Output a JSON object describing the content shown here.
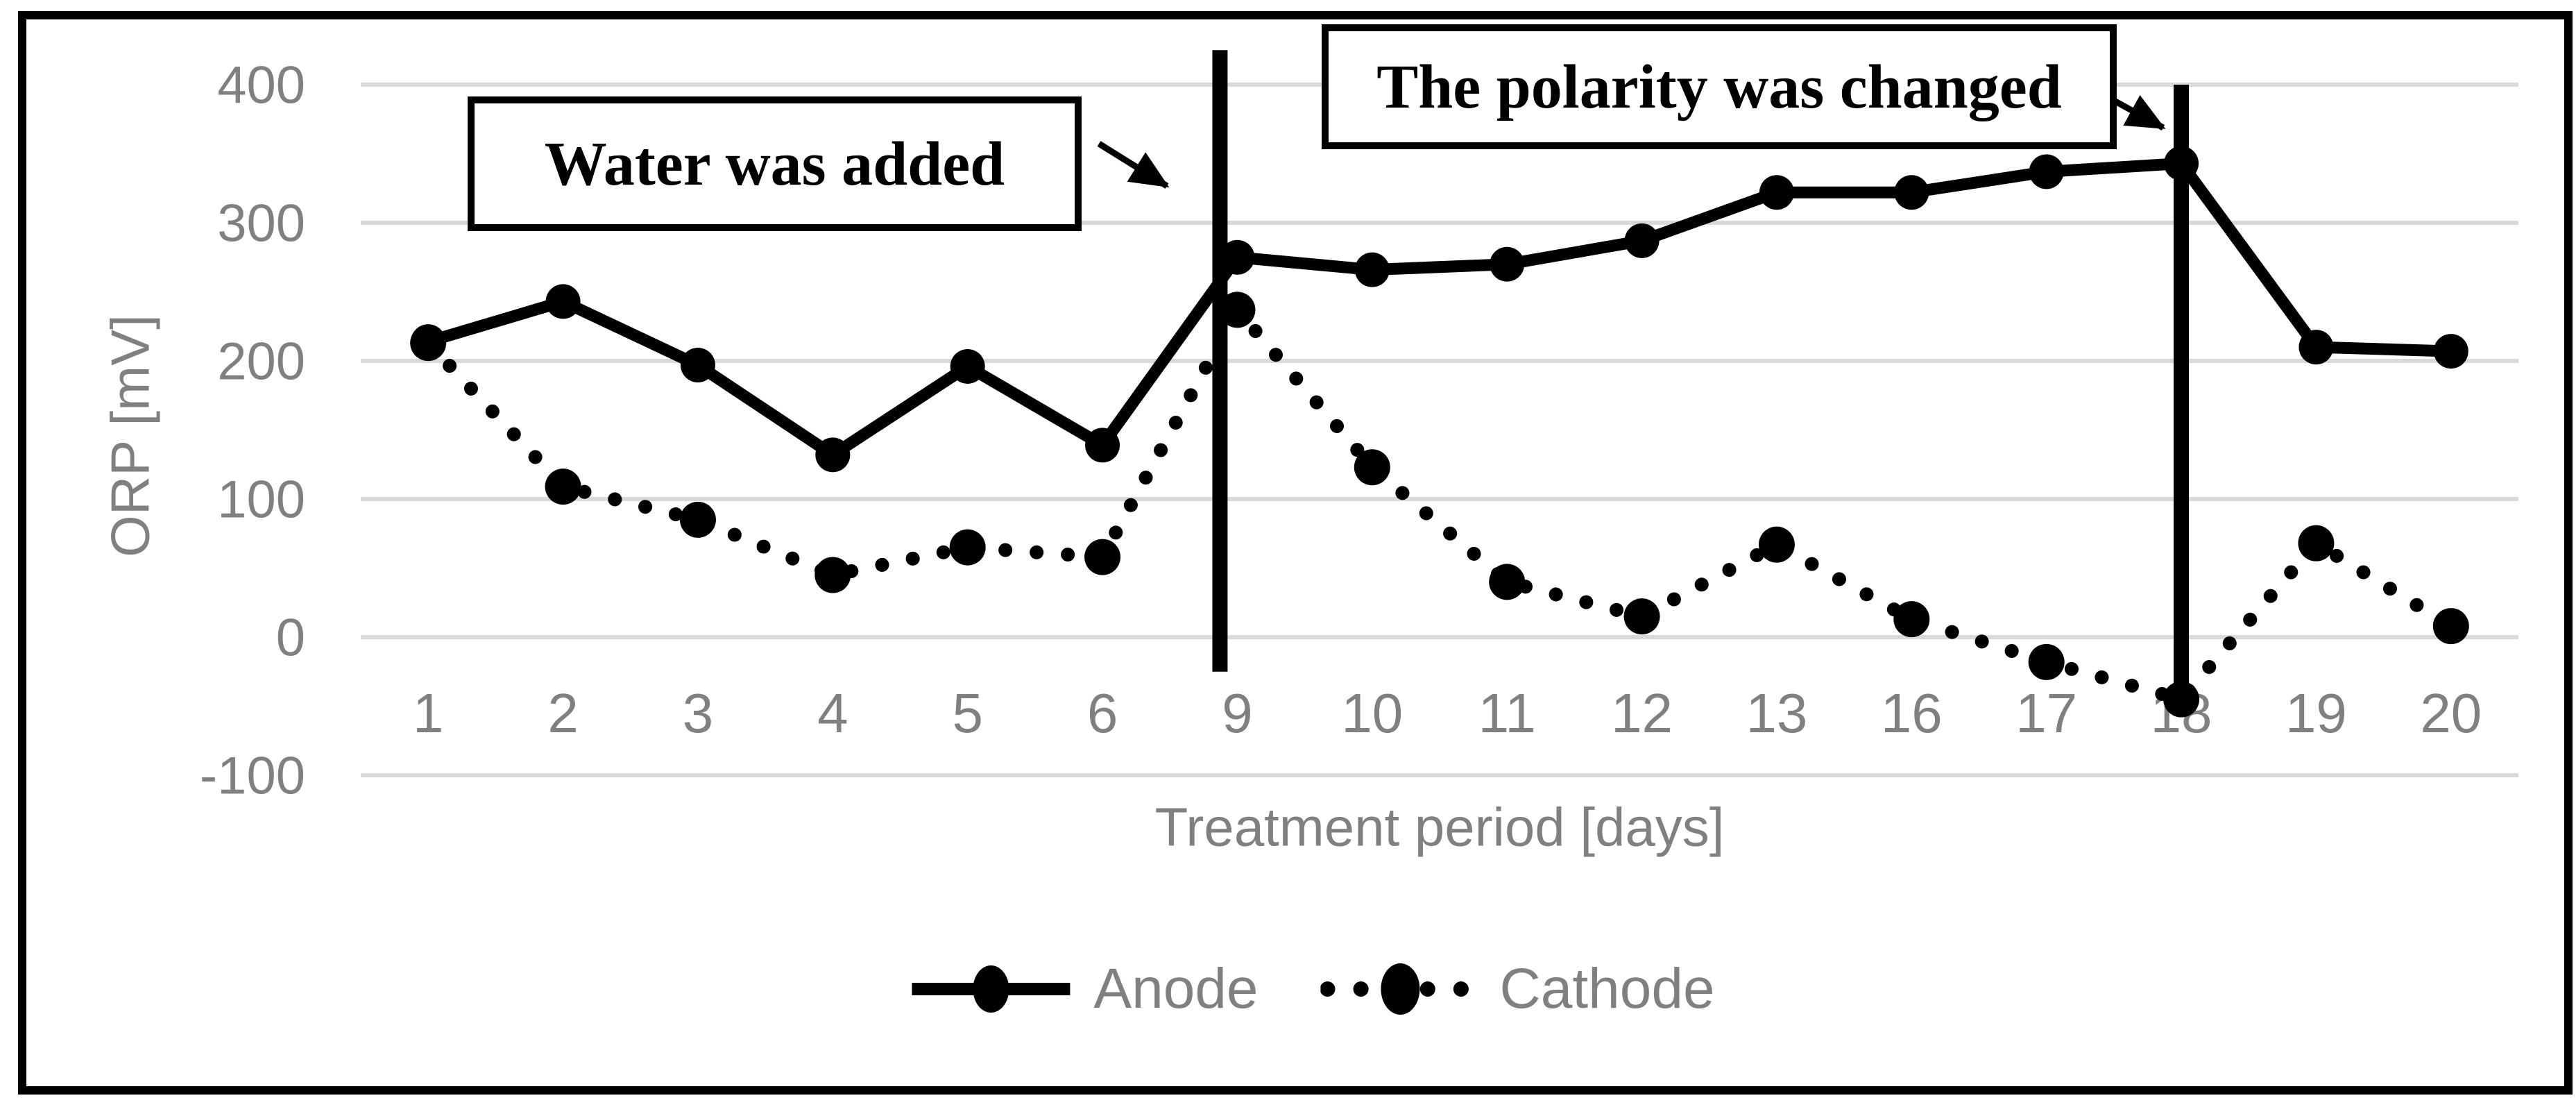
{
  "chart_data": {
    "type": "line",
    "xlabel": "Treatment period [days]",
    "ylabel": "ORP [mV]",
    "categories": [
      1,
      2,
      3,
      4,
      5,
      6,
      9,
      10,
      11,
      12,
      13,
      16,
      17,
      18,
      19,
      20
    ],
    "series": [
      {
        "name": "Anode",
        "style": "solid",
        "values": [
          214,
          243,
          197,
          132,
          196,
          139,
          275,
          266,
          270,
          287,
          322,
          322,
          337,
          343,
          210,
          207
        ]
      },
      {
        "name": "Cathode",
        "style": "dotted",
        "values": [
          213,
          109,
          85,
          45,
          65,
          58,
          237,
          123,
          40,
          15,
          67,
          13,
          -18,
          -45,
          68,
          8
        ]
      }
    ],
    "ylim": [
      -100,
      400
    ],
    "yticks": [
      400,
      300,
      200,
      100,
      0,
      -100
    ],
    "grid": "horizontal",
    "legend_position": "bottom",
    "annotations": [
      {
        "text": "Water was added",
        "points_to_day": 9,
        "vline": {
          "at_day": 9,
          "from_mV": 425,
          "to_mV": -25
        }
      },
      {
        "text": "The polarity was changed",
        "points_to_day": 18,
        "vline": {
          "at_day": 18,
          "from_mV": 400,
          "to_mV": -52
        }
      }
    ]
  },
  "colors": {
    "series": "#000000",
    "axis_text": "#808080",
    "gridline": "#d9d9d9",
    "frame": "#000000",
    "background": "#ffffff"
  }
}
